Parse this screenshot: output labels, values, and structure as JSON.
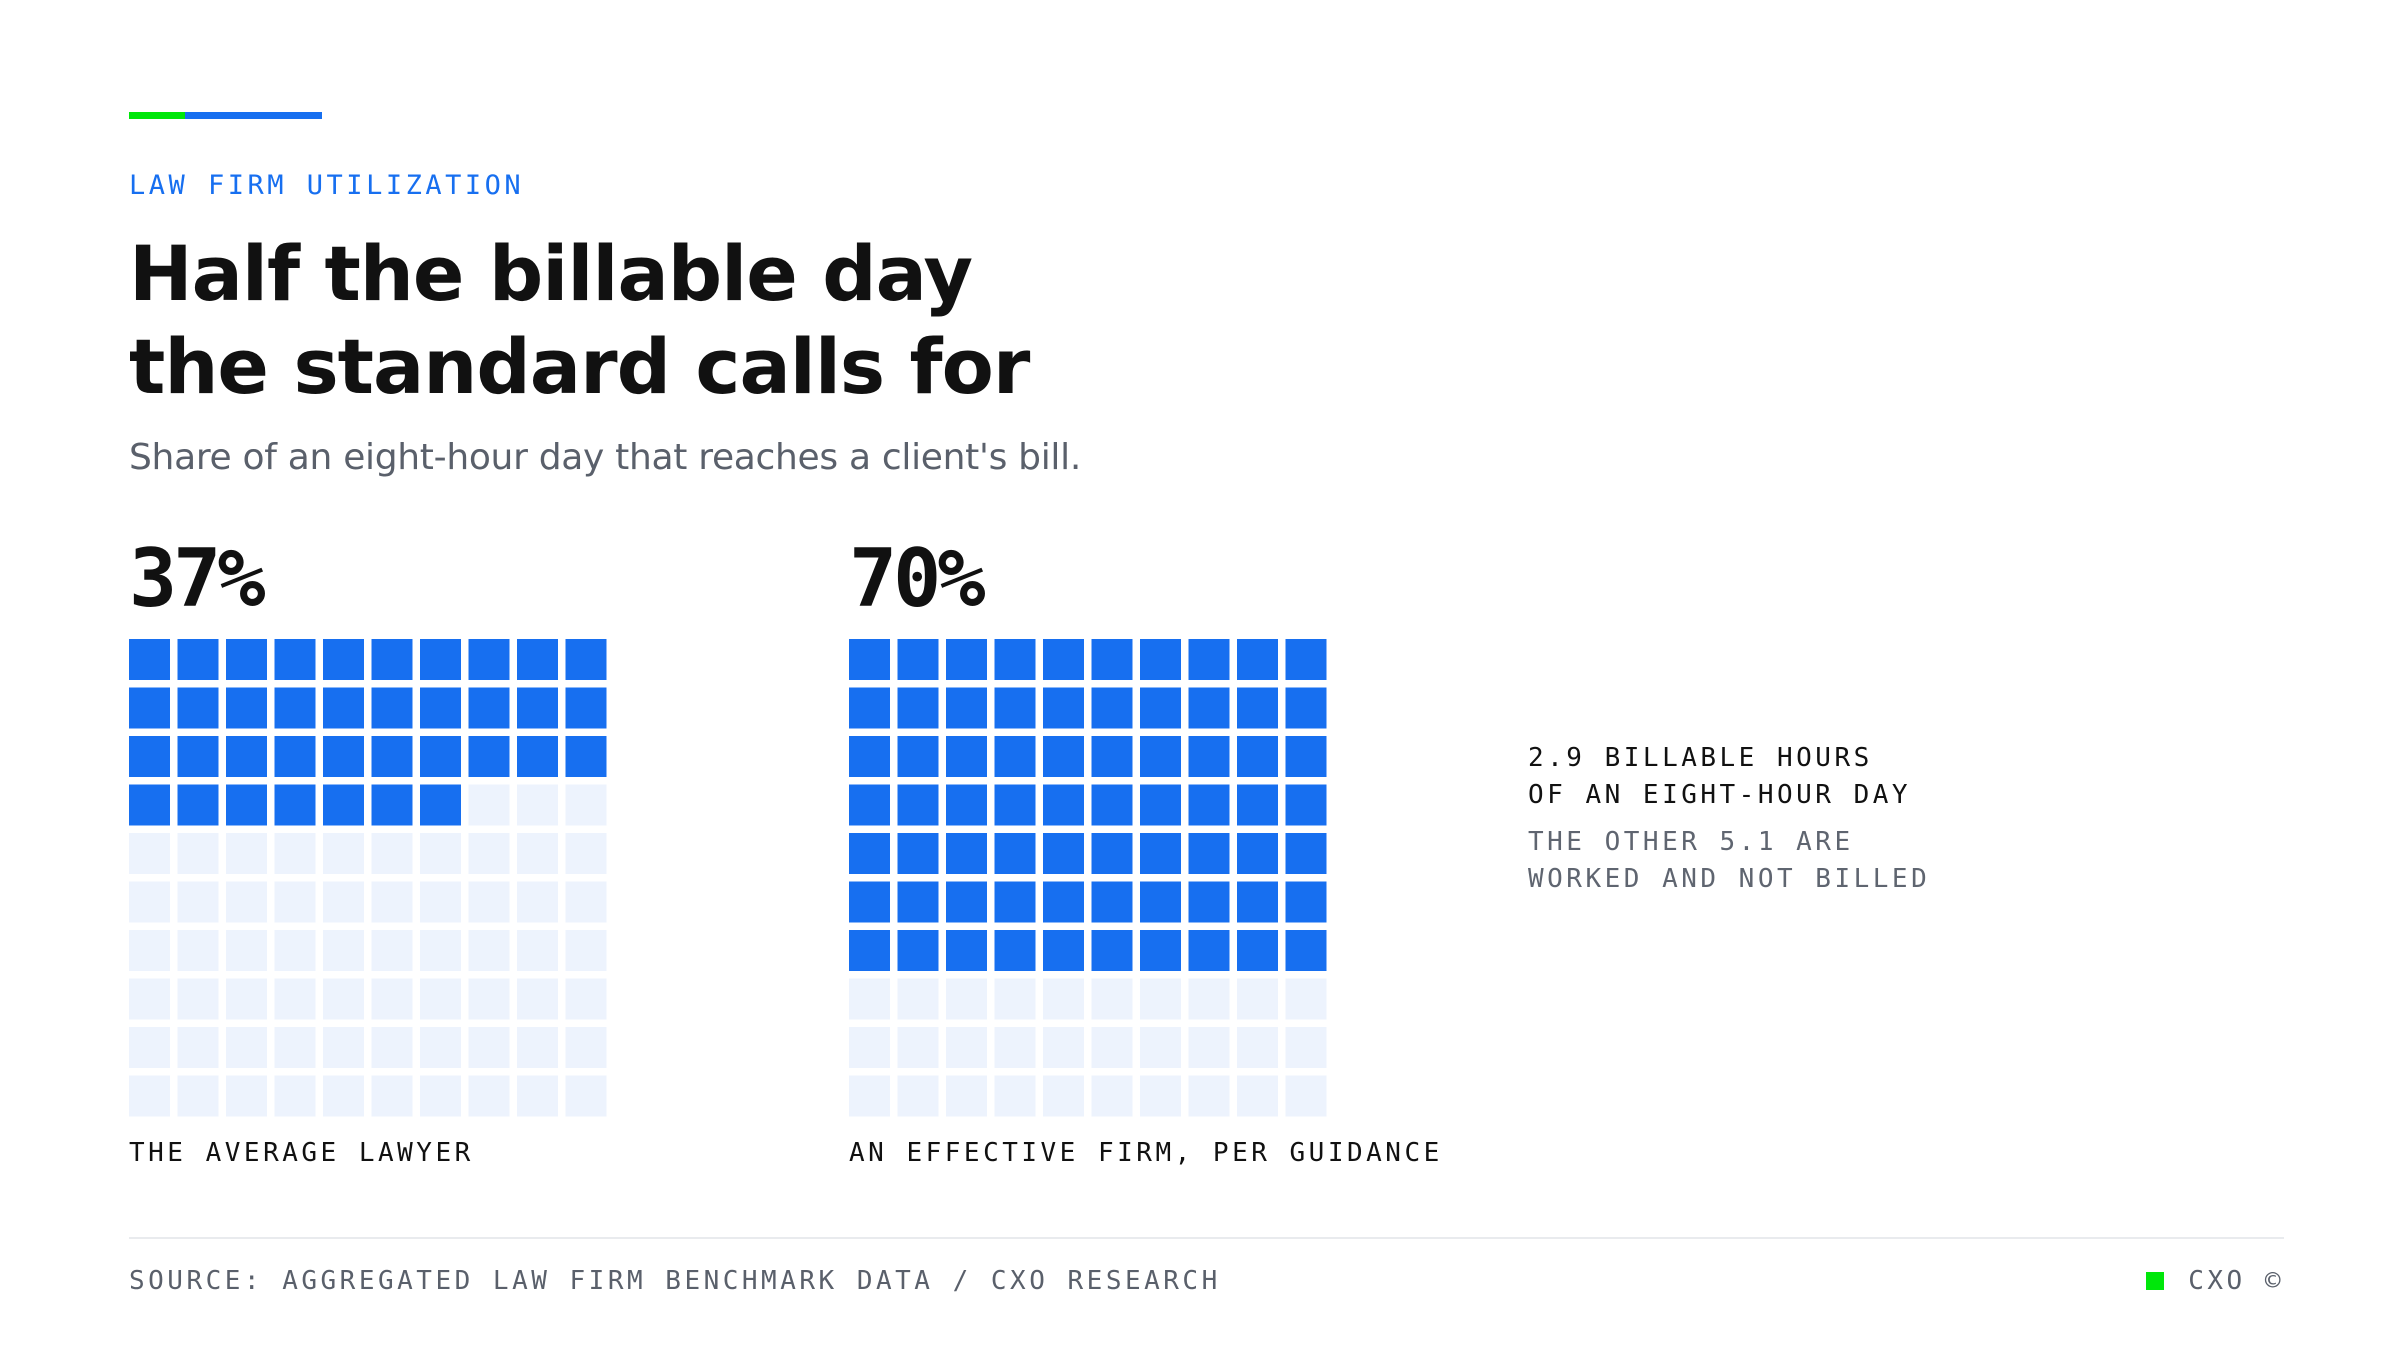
{
  "colors": {
    "accent_green": "#00e70a",
    "accent_blue": "#176ff0",
    "filled_cell": "#176ff0",
    "empty_cell": "#edf3fd"
  },
  "header": {
    "eyebrow": "LAW FIRM UTILIZATION",
    "title_line1": "Half the billable day",
    "title_line2": "the standard calls for",
    "subtitle": "Share of an eight-hour day that reaches a client's bill."
  },
  "chart_data": {
    "type": "waffle",
    "units_per_grid": 100,
    "grids": [
      {
        "value": 37,
        "value_label": "37%",
        "caption": "THE AVERAGE LAWYER"
      },
      {
        "value": 70,
        "value_label": "70%",
        "caption": "AN EFFECTIVE FIRM, PER GUIDANCE"
      }
    ]
  },
  "note": {
    "head_line1": "2.9 BILLABLE HOURS",
    "head_line2": "OF AN EIGHT-HOUR DAY",
    "sub_line1": "THE OTHER 5.1 ARE",
    "sub_line2": "WORKED AND NOT BILLED"
  },
  "footer": {
    "source": "SOURCE: AGGREGATED LAW FIRM BENCHMARK DATA / CXO RESEARCH",
    "brand": "CXO ©"
  }
}
